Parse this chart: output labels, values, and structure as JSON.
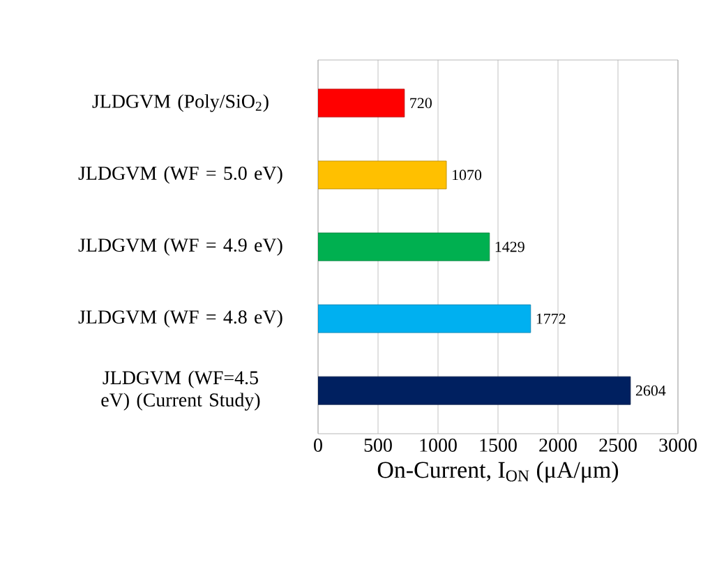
{
  "chart_data": {
    "type": "bar",
    "orientation": "horizontal",
    "xlabel": "On-Current, I$_{ON}$ (μA/μm)",
    "categories": [
      "JLDGVM (Poly/SiO$_{2}$)",
      "JLDGVM (WF = 5.0 eV)",
      "JLDGVM (WF = 4.9 eV)",
      "JLDGVM (WF = 4.8 eV)",
      "JLDGVM (WF=4.5 eV) (Current Study)"
    ],
    "values": [
      720,
      1070,
      1429,
      1772,
      2604
    ],
    "colors": [
      "#ff0000",
      "#ffc000",
      "#00b050",
      "#00b0f0",
      "#002060"
    ],
    "xlim": [
      0,
      3000
    ],
    "xticks": [
      0,
      500,
      1000,
      1500,
      2000,
      2500,
      3000
    ],
    "grid": "x",
    "data_labels": true
  }
}
